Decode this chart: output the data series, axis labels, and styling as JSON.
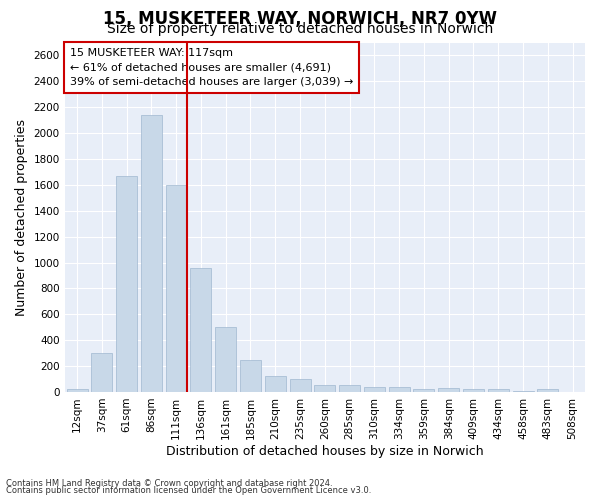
{
  "title": "15, MUSKETEER WAY, NORWICH, NR7 0YW",
  "subtitle": "Size of property relative to detached houses in Norwich",
  "xlabel": "Distribution of detached houses by size in Norwich",
  "ylabel": "Number of detached properties",
  "bar_color": "#c8d8e8",
  "bar_edge_color": "#a0b8d0",
  "background_color": "#e8eef8",
  "grid_color": "#ffffff",
  "categories": [
    "12sqm",
    "37sqm",
    "61sqm",
    "86sqm",
    "111sqm",
    "136sqm",
    "161sqm",
    "185sqm",
    "210sqm",
    "235sqm",
    "260sqm",
    "285sqm",
    "310sqm",
    "334sqm",
    "359sqm",
    "384sqm",
    "409sqm",
    "434sqm",
    "458sqm",
    "483sqm",
    "508sqm"
  ],
  "values": [
    25,
    300,
    1670,
    2140,
    1600,
    960,
    500,
    250,
    120,
    100,
    50,
    50,
    35,
    35,
    20,
    30,
    20,
    20,
    5,
    25,
    0
  ],
  "ylim": [
    0,
    2700
  ],
  "yticks": [
    0,
    200,
    400,
    600,
    800,
    1000,
    1200,
    1400,
    1600,
    1800,
    2000,
    2200,
    2400,
    2600
  ],
  "property_line_index": 4,
  "annotation_text": "15 MUSKETEER WAY: 117sqm\n← 61% of detached houses are smaller (4,691)\n39% of semi-detached houses are larger (3,039) →",
  "annotation_box_color": "#ffffff",
  "annotation_box_edge": "#cc0000",
  "property_line_color": "#cc0000",
  "footer_line1": "Contains HM Land Registry data © Crown copyright and database right 2024.",
  "footer_line2": "Contains public sector information licensed under the Open Government Licence v3.0.",
  "title_fontsize": 12,
  "subtitle_fontsize": 10,
  "tick_fontsize": 7.5,
  "ylabel_fontsize": 9,
  "xlabel_fontsize": 9,
  "annotation_fontsize": 8
}
